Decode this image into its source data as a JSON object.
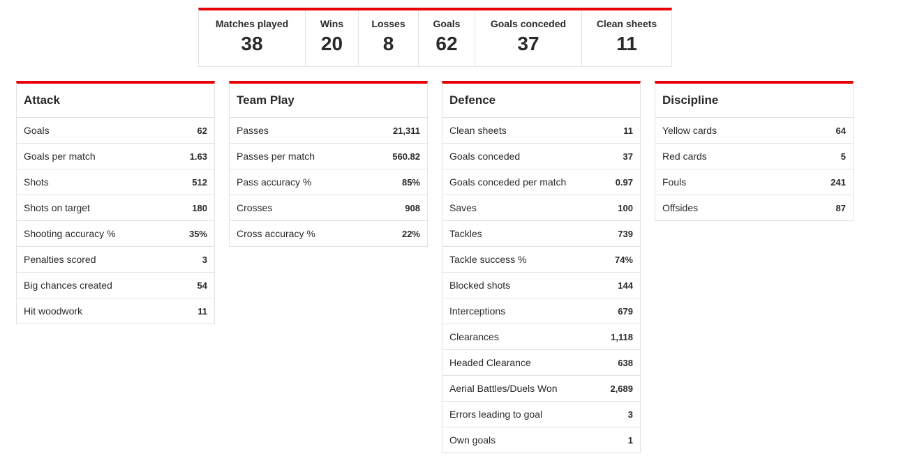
{
  "summary": [
    {
      "label": "Matches played",
      "value": "38"
    },
    {
      "label": "Wins",
      "value": "20"
    },
    {
      "label": "Losses",
      "value": "8"
    },
    {
      "label": "Goals",
      "value": "62"
    },
    {
      "label": "Goals conceded",
      "value": "37"
    },
    {
      "label": "Clean sheets",
      "value": "11"
    }
  ],
  "panels": [
    {
      "title": "Attack",
      "rows": [
        {
          "label": "Goals",
          "value": "62"
        },
        {
          "label": "Goals per match",
          "value": "1.63"
        },
        {
          "label": "Shots",
          "value": "512"
        },
        {
          "label": "Shots on target",
          "value": "180"
        },
        {
          "label": "Shooting accuracy %",
          "value": "35%"
        },
        {
          "label": "Penalties scored",
          "value": "3"
        },
        {
          "label": "Big chances created",
          "value": "54"
        },
        {
          "label": "Hit woodwork",
          "value": "11"
        }
      ]
    },
    {
      "title": "Team Play",
      "rows": [
        {
          "label": "Passes",
          "value": "21,311"
        },
        {
          "label": "Passes per match",
          "value": "560.82"
        },
        {
          "label": "Pass accuracy %",
          "value": "85%"
        },
        {
          "label": "Crosses",
          "value": "908"
        },
        {
          "label": "Cross accuracy %",
          "value": "22%"
        }
      ]
    },
    {
      "title": "Defence",
      "rows": [
        {
          "label": "Clean sheets",
          "value": "11"
        },
        {
          "label": "Goals conceded",
          "value": "37"
        },
        {
          "label": "Goals conceded per match",
          "value": "0.97"
        },
        {
          "label": "Saves",
          "value": "100"
        },
        {
          "label": "Tackles",
          "value": "739"
        },
        {
          "label": "Tackle success %",
          "value": "74%"
        },
        {
          "label": "Blocked shots",
          "value": "144"
        },
        {
          "label": "Interceptions",
          "value": "679"
        },
        {
          "label": "Clearances",
          "value": "1,118"
        },
        {
          "label": "Headed Clearance",
          "value": "638"
        },
        {
          "label": "Aerial Battles/Duels Won",
          "value": "2,689"
        },
        {
          "label": "Errors leading to goal",
          "value": "3"
        },
        {
          "label": "Own goals",
          "value": "1"
        }
      ]
    },
    {
      "title": "Discipline",
      "rows": [
        {
          "label": "Yellow cards",
          "value": "64"
        },
        {
          "label": "Red cards",
          "value": "5"
        },
        {
          "label": "Fouls",
          "value": "241"
        },
        {
          "label": "Offsides",
          "value": "87"
        }
      ]
    }
  ],
  "colors": {
    "accent": "#e90000",
    "border": "#e2e2e2",
    "text": "#2a2a2a"
  }
}
